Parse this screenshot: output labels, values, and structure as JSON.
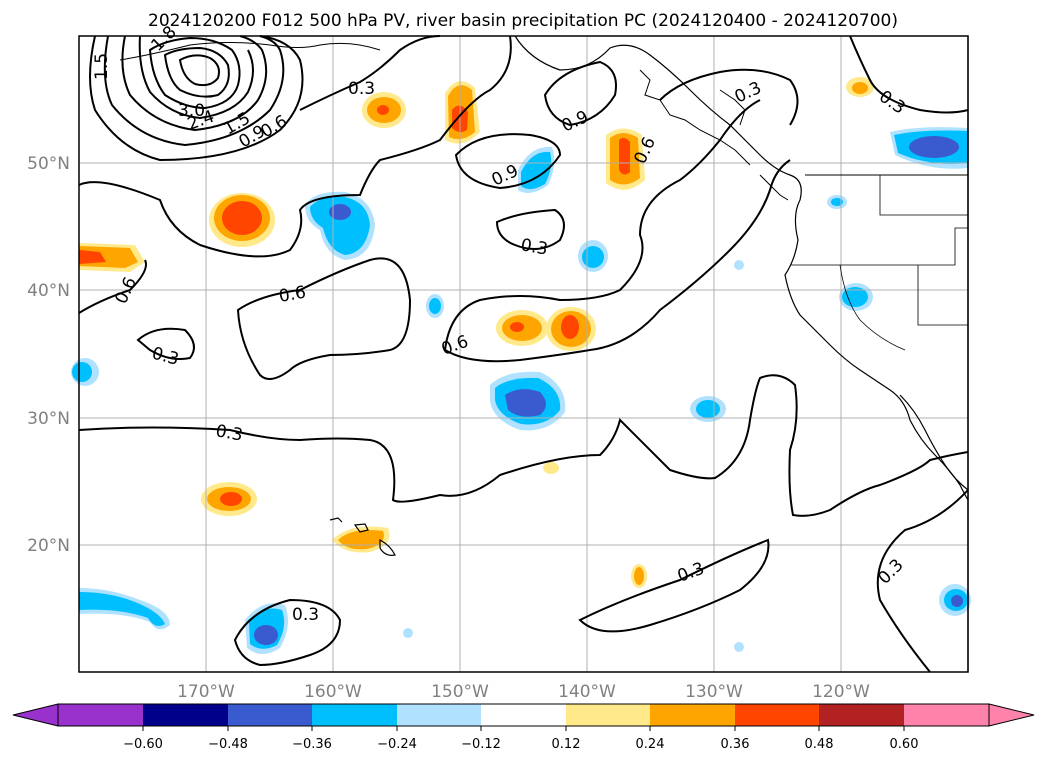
{
  "title": "2024120200 F012 500 hPa PV, river basin precipitation PC (2024120400 - 2024120700)",
  "lat_labels": [
    "50°N",
    "40°N",
    "30°N",
    "20°N"
  ],
  "lon_labels": [
    "170°W",
    "160°W",
    "150°W",
    "140°W",
    "130°W",
    "120°W"
  ],
  "colorbar": {
    "ticks": [
      "−0.60",
      "−0.48",
      "−0.36",
      "−0.24",
      "−0.12",
      "0.12",
      "0.24",
      "0.36",
      "0.48",
      "0.60"
    ],
    "colors": [
      "#9932cc",
      "#00008b",
      "#3a5bd0",
      "#00bfff",
      "#b0e2ff",
      "#ffffff",
      "#ffe98a",
      "#ffa500",
      "#ff4500",
      "#b22222",
      "#ff82ab"
    ]
  },
  "contour_labels": [
    "1.8",
    "1.5",
    "3.0",
    "2.4",
    "1.5",
    "0.9",
    "0.6",
    "0.3",
    "0.9",
    "0.9",
    "0.6",
    "0.3",
    "0.3",
    "0.6",
    "0.6",
    "0.6",
    "0.3",
    "0.3",
    "0.3",
    "0.3",
    "0.3",
    "0.3"
  ]
}
